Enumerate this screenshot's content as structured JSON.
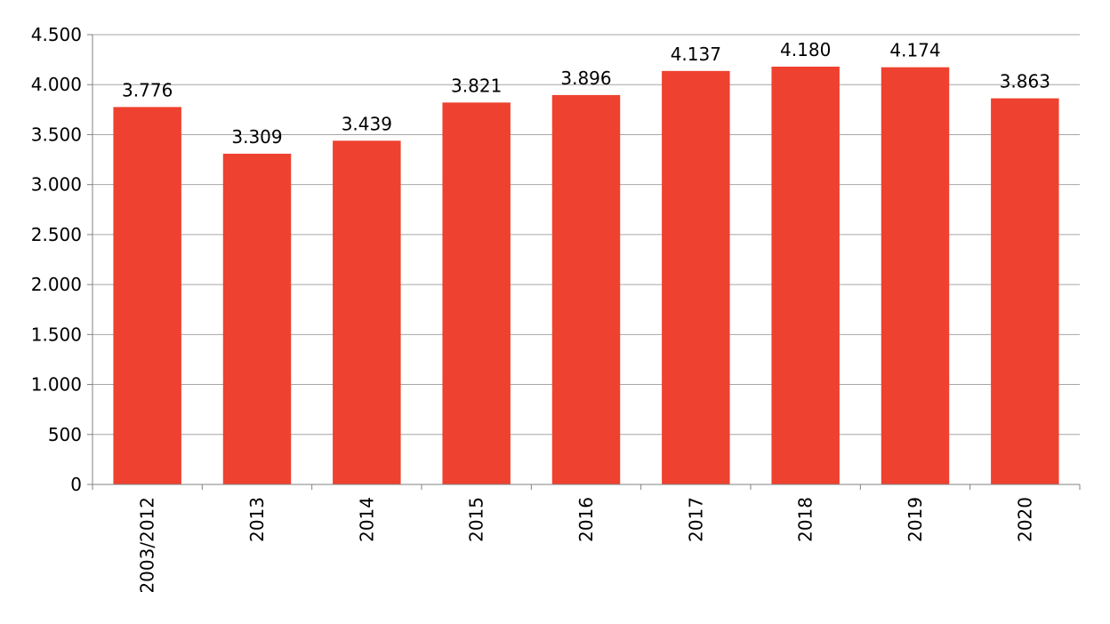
{
  "chart_data": {
    "type": "bar",
    "title": "",
    "xlabel": "",
    "ylabel": "",
    "categories": [
      "2003/2012",
      "2013",
      "2014",
      "2015",
      "2016",
      "2017",
      "2018",
      "2019",
      "2020"
    ],
    "values": [
      3776,
      3309,
      3439,
      3821,
      3896,
      4137,
      4180,
      4174,
      3863
    ],
    "value_labels": [
      "3.776",
      "3.309",
      "3.439",
      "3.821",
      "3.896",
      "4.137",
      "4.180",
      "4.174",
      "3.863"
    ],
    "ylim": [
      0,
      4500
    ],
    "yticks": [
      0,
      500,
      1000,
      1500,
      2000,
      2500,
      3000,
      3500,
      4000,
      4500
    ],
    "ytick_labels": [
      "0",
      "500",
      "1.000",
      "1.500",
      "2.000",
      "2.500",
      "3.000",
      "3.500",
      "4.000",
      "4.500"
    ],
    "grid": true,
    "legend": "none",
    "colors": {
      "bar": "#ef412f",
      "grid": "#a6a6a6",
      "axis": "#808080"
    }
  }
}
